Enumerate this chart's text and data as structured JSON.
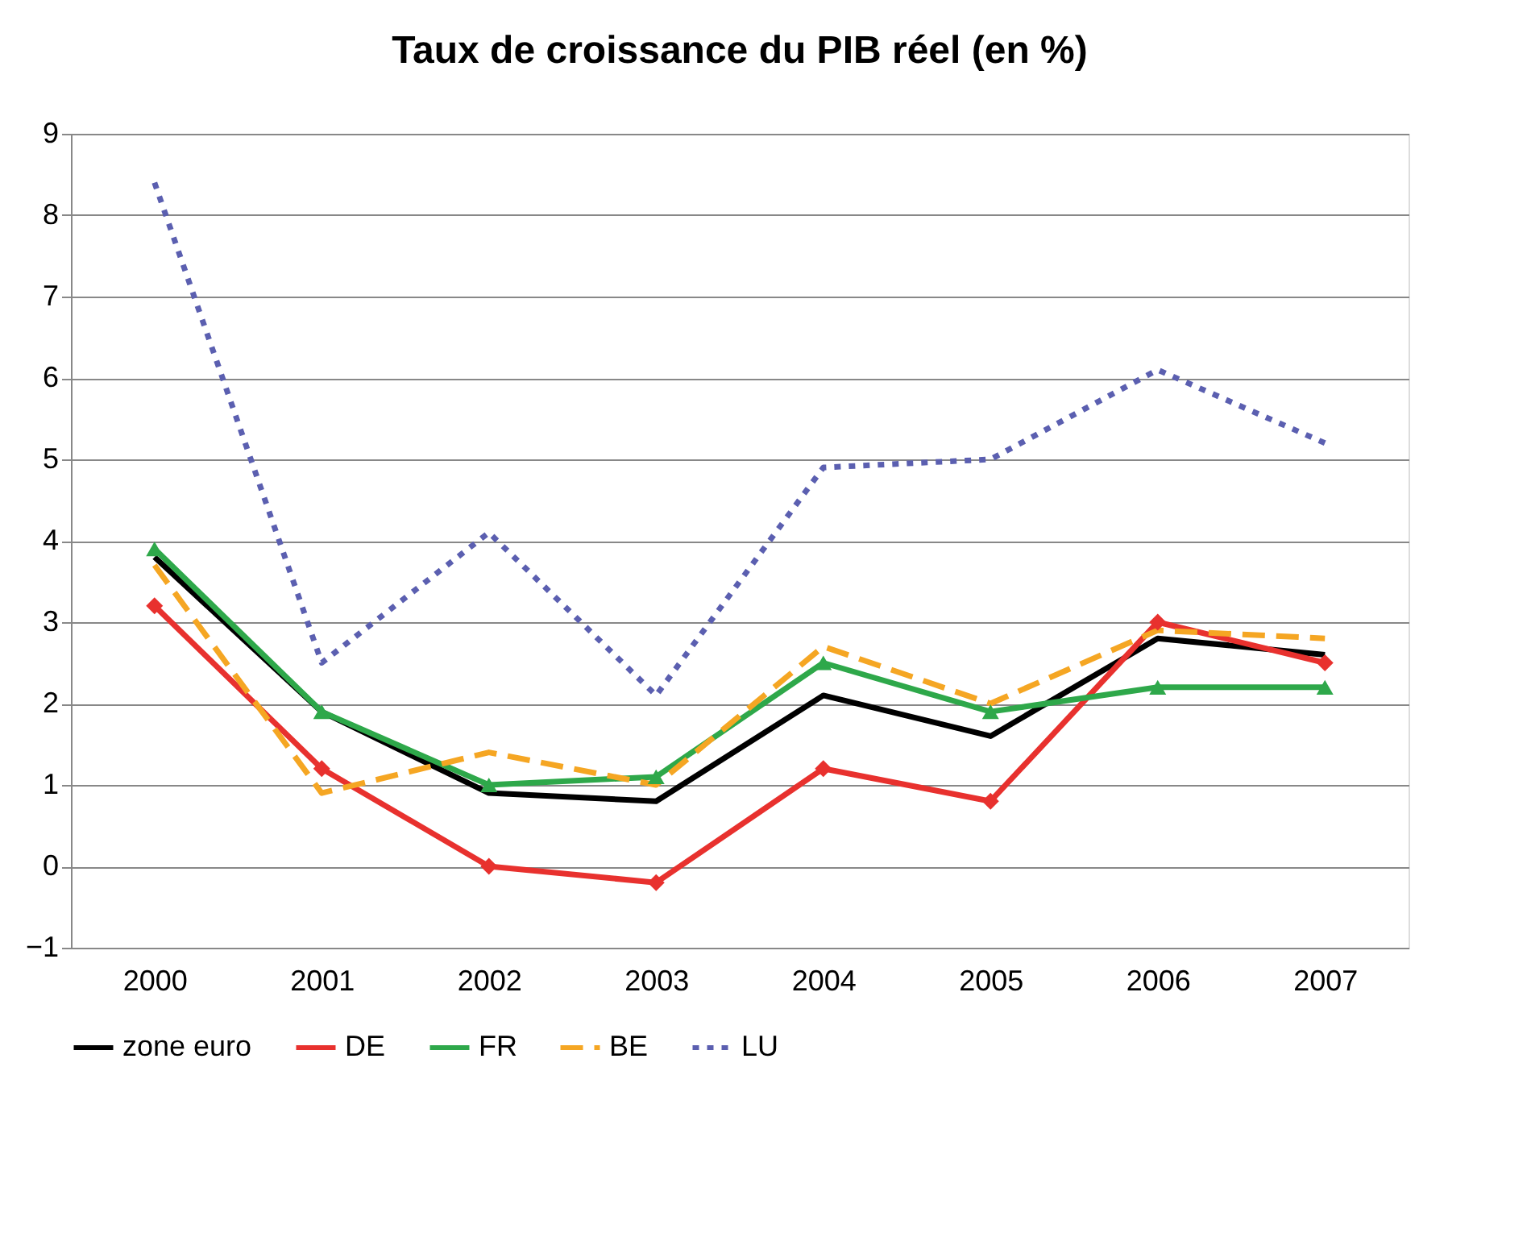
{
  "chart_data": {
    "type": "line",
    "title": "Taux de croissance du PIB réel (en %)",
    "categories": [
      "2000",
      "2001",
      "2002",
      "2003",
      "2004",
      "2005",
      "2006",
      "2007"
    ],
    "series": [
      {
        "name": "zone euro",
        "color": "#000000",
        "values": [
          3.8,
          1.9,
          0.9,
          0.8,
          2.1,
          1.6,
          2.8,
          2.6
        ],
        "marker": "none",
        "line_style": "solid"
      },
      {
        "name": "DE",
        "color": "#e8312e",
        "values": [
          3.2,
          1.2,
          0.0,
          -0.2,
          1.2,
          0.8,
          3.0,
          2.5
        ],
        "marker": "diamond",
        "line_style": "solid"
      },
      {
        "name": "FR",
        "color": "#2ea84a",
        "values": [
          3.9,
          1.9,
          1.0,
          1.1,
          2.5,
          1.9,
          2.2,
          2.2
        ],
        "marker": "triangle",
        "line_style": "solid"
      },
      {
        "name": "BE",
        "color": "#f5a623",
        "values": [
          3.7,
          0.9,
          1.4,
          1.0,
          2.7,
          2.0,
          2.9,
          2.8
        ],
        "marker": "none",
        "line_style": "dashed"
      },
      {
        "name": "LU",
        "color": "#5b5fb0",
        "values": [
          8.4,
          2.5,
          4.1,
          2.1,
          4.9,
          5.0,
          6.1,
          5.2
        ],
        "marker": "none",
        "line_style": "dotted"
      }
    ],
    "ylim": [
      -1,
      9
    ],
    "yticks": [
      -1,
      0,
      1,
      2,
      3,
      4,
      5,
      6,
      7,
      8,
      9
    ],
    "grid": "y",
    "legend": "bottom"
  }
}
